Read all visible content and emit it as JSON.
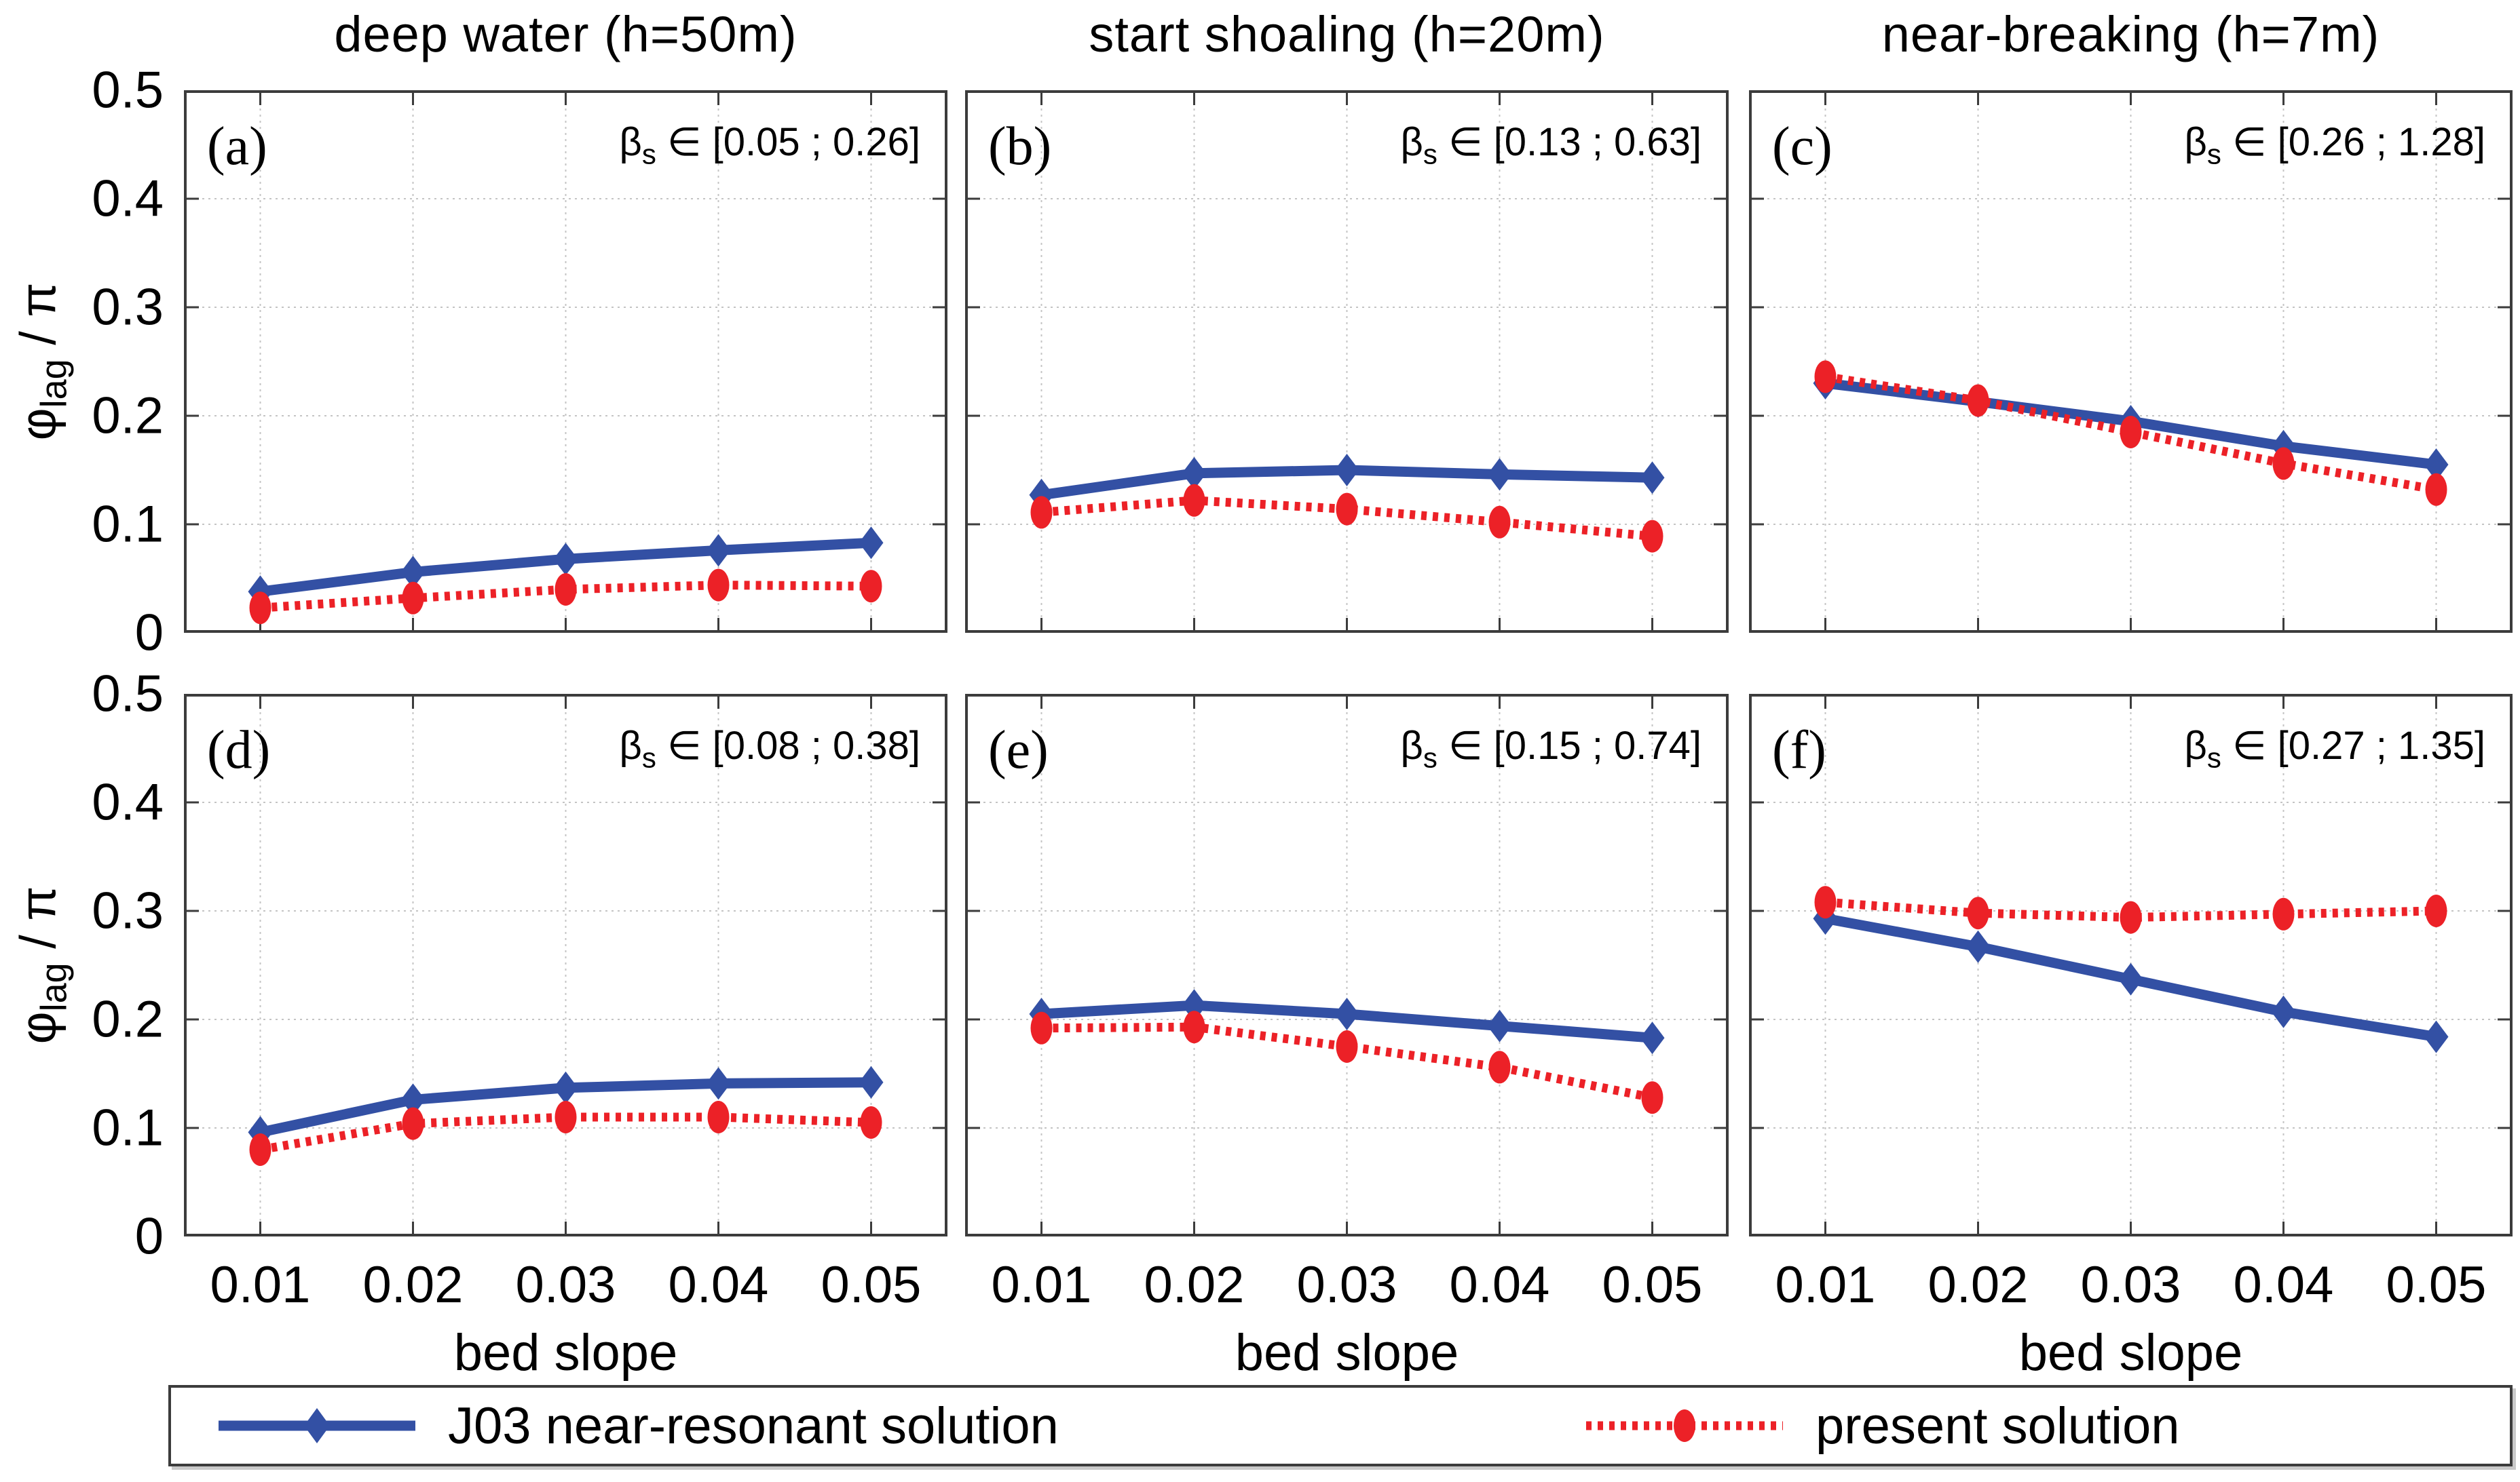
{
  "figure": {
    "col_titles": [
      "deep water (h=50m)",
      "start shoaling (h=20m)",
      "near-breaking (h=7m)"
    ],
    "ylabel": {
      "phi": "φ",
      "sub": "lag",
      "rest": " / π"
    },
    "xlabel": "bed slope",
    "beta": {
      "sym": "β",
      "sub": "s",
      "in": "∈"
    },
    "colors": {
      "j03": "#3350a4",
      "present": "#ec2127",
      "grid": "#c4c4c4",
      "axis": "#3c3c3c"
    },
    "legend": [
      {
        "label": "J03 near-resonant solution",
        "series": "j03",
        "style": "solid",
        "marker": "diamond"
      },
      {
        "label": "present solution",
        "series": "present",
        "style": "dotted",
        "marker": "ellipse"
      }
    ]
  },
  "chart_data": [
    {
      "type": "line",
      "panel": "(a)",
      "col_title": "deep water (h=50m)",
      "beta_range": "[0.05 ; 0.26]",
      "x": [
        0.01,
        0.02,
        0.03,
        0.04,
        0.05
      ],
      "xlim": [
        0.005,
        0.055
      ],
      "ylim": [
        0,
        0.5
      ],
      "xticks": [
        0.01,
        0.02,
        0.03,
        0.04,
        0.05
      ],
      "yticks": [
        0,
        0.1,
        0.2,
        0.3,
        0.4,
        0.5
      ],
      "xlabel": "bed slope",
      "ylabel": "phi_lag / pi",
      "grid": true,
      "series": [
        {
          "name": "J03 near-resonant solution",
          "color": "#3350a4",
          "style": "solid",
          "marker": "diamond",
          "values": [
            0.038,
            0.056,
            0.068,
            0.076,
            0.083
          ]
        },
        {
          "name": "present solution",
          "color": "#ec2127",
          "style": "dotted",
          "marker": "ellipse",
          "values": [
            0.023,
            0.032,
            0.04,
            0.044,
            0.043
          ]
        }
      ]
    },
    {
      "type": "line",
      "panel": "(b)",
      "col_title": "start shoaling (h=20m)",
      "beta_range": "[0.13 ; 0.63]",
      "x": [
        0.01,
        0.02,
        0.03,
        0.04,
        0.05
      ],
      "xlim": [
        0.005,
        0.055
      ],
      "ylim": [
        0,
        0.5
      ],
      "xticks": [
        0.01,
        0.02,
        0.03,
        0.04,
        0.05
      ],
      "yticks": [
        0,
        0.1,
        0.2,
        0.3,
        0.4,
        0.5
      ],
      "xlabel": "bed slope",
      "ylabel": "phi_lag / pi",
      "grid": true,
      "series": [
        {
          "name": "J03 near-resonant solution",
          "color": "#3350a4",
          "style": "solid",
          "marker": "diamond",
          "values": [
            0.127,
            0.147,
            0.15,
            0.146,
            0.143
          ]
        },
        {
          "name": "present solution",
          "color": "#ec2127",
          "style": "dotted",
          "marker": "ellipse",
          "values": [
            0.111,
            0.122,
            0.114,
            0.102,
            0.089
          ]
        }
      ]
    },
    {
      "type": "line",
      "panel": "(c)",
      "col_title": "near-breaking (h=7m)",
      "beta_range": "[0.26 ; 1.28]",
      "x": [
        0.01,
        0.02,
        0.03,
        0.04,
        0.05
      ],
      "xlim": [
        0.005,
        0.055
      ],
      "ylim": [
        0,
        0.5
      ],
      "xticks": [
        0.01,
        0.02,
        0.03,
        0.04,
        0.05
      ],
      "yticks": [
        0,
        0.1,
        0.2,
        0.3,
        0.4,
        0.5
      ],
      "xlabel": "bed slope",
      "ylabel": "phi_lag / pi",
      "grid": true,
      "series": [
        {
          "name": "J03 near-resonant solution",
          "color": "#3350a4",
          "style": "solid",
          "marker": "diamond",
          "values": [
            0.23,
            0.213,
            0.195,
            0.172,
            0.155
          ]
        },
        {
          "name": "present solution",
          "color": "#ec2127",
          "style": "dotted",
          "marker": "ellipse",
          "values": [
            0.236,
            0.214,
            0.185,
            0.156,
            0.132
          ]
        }
      ]
    },
    {
      "type": "line",
      "panel": "(d)",
      "col_title": "deep water (h=50m)",
      "beta_range": "[0.08 ; 0.38]",
      "x": [
        0.01,
        0.02,
        0.03,
        0.04,
        0.05
      ],
      "xlim": [
        0.005,
        0.055
      ],
      "ylim": [
        0,
        0.5
      ],
      "xticks": [
        0.01,
        0.02,
        0.03,
        0.04,
        0.05
      ],
      "yticks": [
        0,
        0.1,
        0.2,
        0.3,
        0.4,
        0.5
      ],
      "xlabel": "bed slope",
      "ylabel": "phi_lag / pi",
      "grid": true,
      "series": [
        {
          "name": "J03 near-resonant solution",
          "color": "#3350a4",
          "style": "solid",
          "marker": "diamond",
          "values": [
            0.096,
            0.126,
            0.137,
            0.141,
            0.142
          ]
        },
        {
          "name": "present solution",
          "color": "#ec2127",
          "style": "dotted",
          "marker": "ellipse",
          "values": [
            0.08,
            0.104,
            0.11,
            0.11,
            0.105
          ]
        }
      ]
    },
    {
      "type": "line",
      "panel": "(e)",
      "col_title": "start shoaling (h=20m)",
      "beta_range": "[0.15 ; 0.74]",
      "x": [
        0.01,
        0.02,
        0.03,
        0.04,
        0.05
      ],
      "xlim": [
        0.005,
        0.055
      ],
      "ylim": [
        0,
        0.5
      ],
      "xticks": [
        0.01,
        0.02,
        0.03,
        0.04,
        0.05
      ],
      "yticks": [
        0,
        0.1,
        0.2,
        0.3,
        0.4,
        0.5
      ],
      "xlabel": "bed slope",
      "ylabel": "phi_lag / pi",
      "grid": true,
      "series": [
        {
          "name": "J03 near-resonant solution",
          "color": "#3350a4",
          "style": "solid",
          "marker": "diamond",
          "values": [
            0.205,
            0.213,
            0.205,
            0.194,
            0.183
          ]
        },
        {
          "name": "present solution",
          "color": "#ec2127",
          "style": "dotted",
          "marker": "ellipse",
          "values": [
            0.192,
            0.193,
            0.175,
            0.156,
            0.128
          ]
        }
      ]
    },
    {
      "type": "line",
      "panel": "(f)",
      "col_title": "near-breaking (h=7m)",
      "beta_range": "[0.27 ; 1.35]",
      "x": [
        0.01,
        0.02,
        0.03,
        0.04,
        0.05
      ],
      "xlim": [
        0.005,
        0.055
      ],
      "ylim": [
        0,
        0.5
      ],
      "xticks": [
        0.01,
        0.02,
        0.03,
        0.04,
        0.05
      ],
      "yticks": [
        0,
        0.1,
        0.2,
        0.3,
        0.4,
        0.5
      ],
      "xlabel": "bed slope",
      "ylabel": "phi_lag / pi",
      "grid": true,
      "series": [
        {
          "name": "J03 near-resonant solution",
          "color": "#3350a4",
          "style": "solid",
          "marker": "diamond",
          "values": [
            0.293,
            0.267,
            0.237,
            0.207,
            0.184
          ]
        },
        {
          "name": "present solution",
          "color": "#ec2127",
          "style": "dotted",
          "marker": "ellipse",
          "values": [
            0.308,
            0.298,
            0.294,
            0.297,
            0.3
          ]
        }
      ]
    }
  ]
}
